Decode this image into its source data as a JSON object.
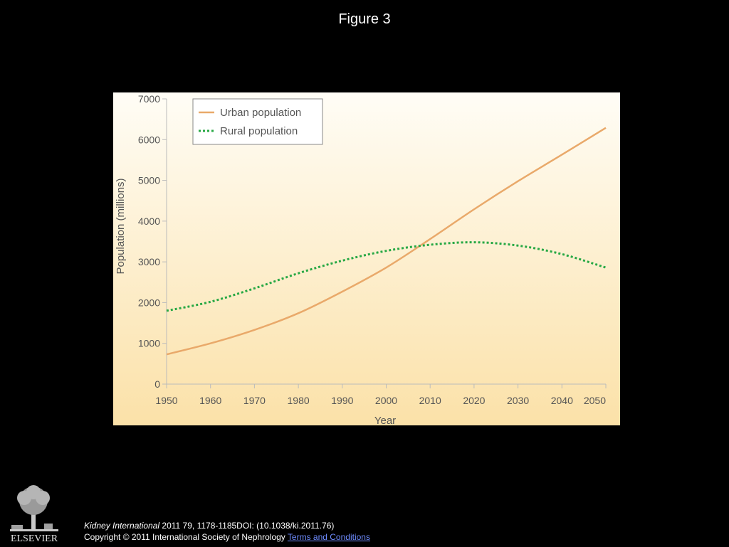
{
  "slide": {
    "title": "Figure 3"
  },
  "chart_data": {
    "type": "line",
    "title": "",
    "xlabel": "Year",
    "ylabel": "Population (millions)",
    "xlim": [
      1950,
      2050
    ],
    "ylim": [
      0,
      7000
    ],
    "x_ticks": [
      "1950",
      "1960",
      "1970",
      "1980",
      "1990",
      "2000",
      "2010",
      "2020",
      "2030",
      "2040",
      "2050"
    ],
    "y_ticks": [
      "0",
      "1000",
      "2000",
      "3000",
      "4000",
      "5000",
      "6000",
      "7000"
    ],
    "grid": false,
    "legend_position": "top-left",
    "background": "gradient cream-to-light-orange",
    "series": [
      {
        "name": "Urban population",
        "color": "#e9a96a",
        "style": "solid",
        "x": [
          1950,
          1960,
          1970,
          1980,
          1990,
          2000,
          2010,
          2020,
          2030,
          2040,
          2050
        ],
        "values": [
          730,
          1000,
          1330,
          1740,
          2270,
          2860,
          3560,
          4290,
          4980,
          5630,
          6290
        ]
      },
      {
        "name": "Rural population",
        "color": "#27a844",
        "style": "dotted",
        "x": [
          1950,
          1960,
          1970,
          1980,
          1990,
          2000,
          2010,
          2020,
          2030,
          2040,
          2050
        ],
        "values": [
          1800,
          2020,
          2350,
          2720,
          3030,
          3270,
          3420,
          3480,
          3400,
          3190,
          2860
        ]
      }
    ]
  },
  "footer": {
    "logo_text": "ELSEVIER",
    "journal": "Kidney International",
    "citation_rest": " 2011 79, 1178-1185DOI: (10.1038/ki.2011.76)",
    "copyright": "Copyright © 2011 International Society of Nephrology ",
    "terms_link": "Terms and Conditions"
  }
}
